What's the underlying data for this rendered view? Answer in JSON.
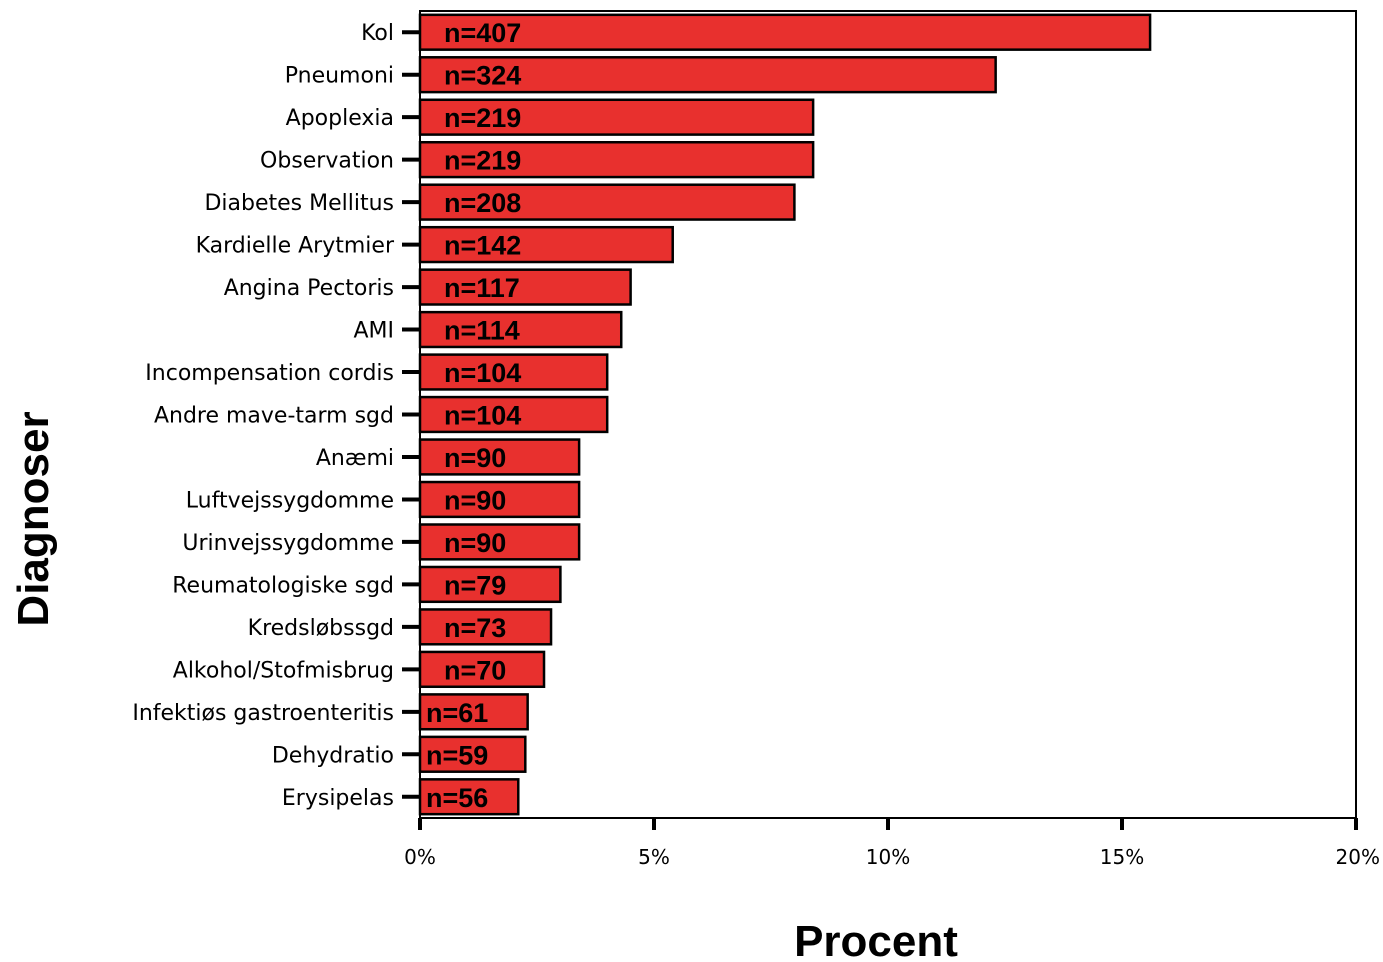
{
  "chart_data": {
    "type": "bar",
    "orientation": "horizontal",
    "xlabel": "Procent",
    "ylabel": "Diagnoser",
    "xlim": [
      0,
      20
    ],
    "xticks": [
      "0%",
      "5%",
      "10%",
      "15%",
      "20%"
    ],
    "bar_color": "#e8302e",
    "grid": false,
    "categories": [
      "Kol",
      "Pneumoni",
      "Apoplexia",
      "Observation",
      "Diabetes Mellitus",
      "Kardielle Arytmier",
      "Angina Pectoris",
      "AMI",
      "Incompensation cordis",
      "Andre mave-tarm sgd",
      "Anæmi",
      "Luftvejssygdomme",
      "Urinvejssygdomme",
      "Reumatologiske sgd",
      "Kredsløbssgd",
      "Alkohol/Stofmisbrug",
      "Infektiøs gastroenteritis",
      "Dehydratio",
      "Erysipelas"
    ],
    "values": [
      15.6,
      12.3,
      8.4,
      8.4,
      8.0,
      5.4,
      4.5,
      4.3,
      4.0,
      4.0,
      3.4,
      3.4,
      3.4,
      3.0,
      2.8,
      2.65,
      2.3,
      2.25,
      2.1
    ],
    "bar_labels": [
      "n=407",
      "n=324",
      "n=219",
      "n=219",
      "n=208",
      "n=142",
      "n=117",
      "n=114",
      "n=104",
      "n=104",
      "n=90",
      "n=90",
      "n=90",
      "n=79",
      "n=73",
      "n=70",
      "n=61",
      "n=59",
      "n=56"
    ]
  }
}
